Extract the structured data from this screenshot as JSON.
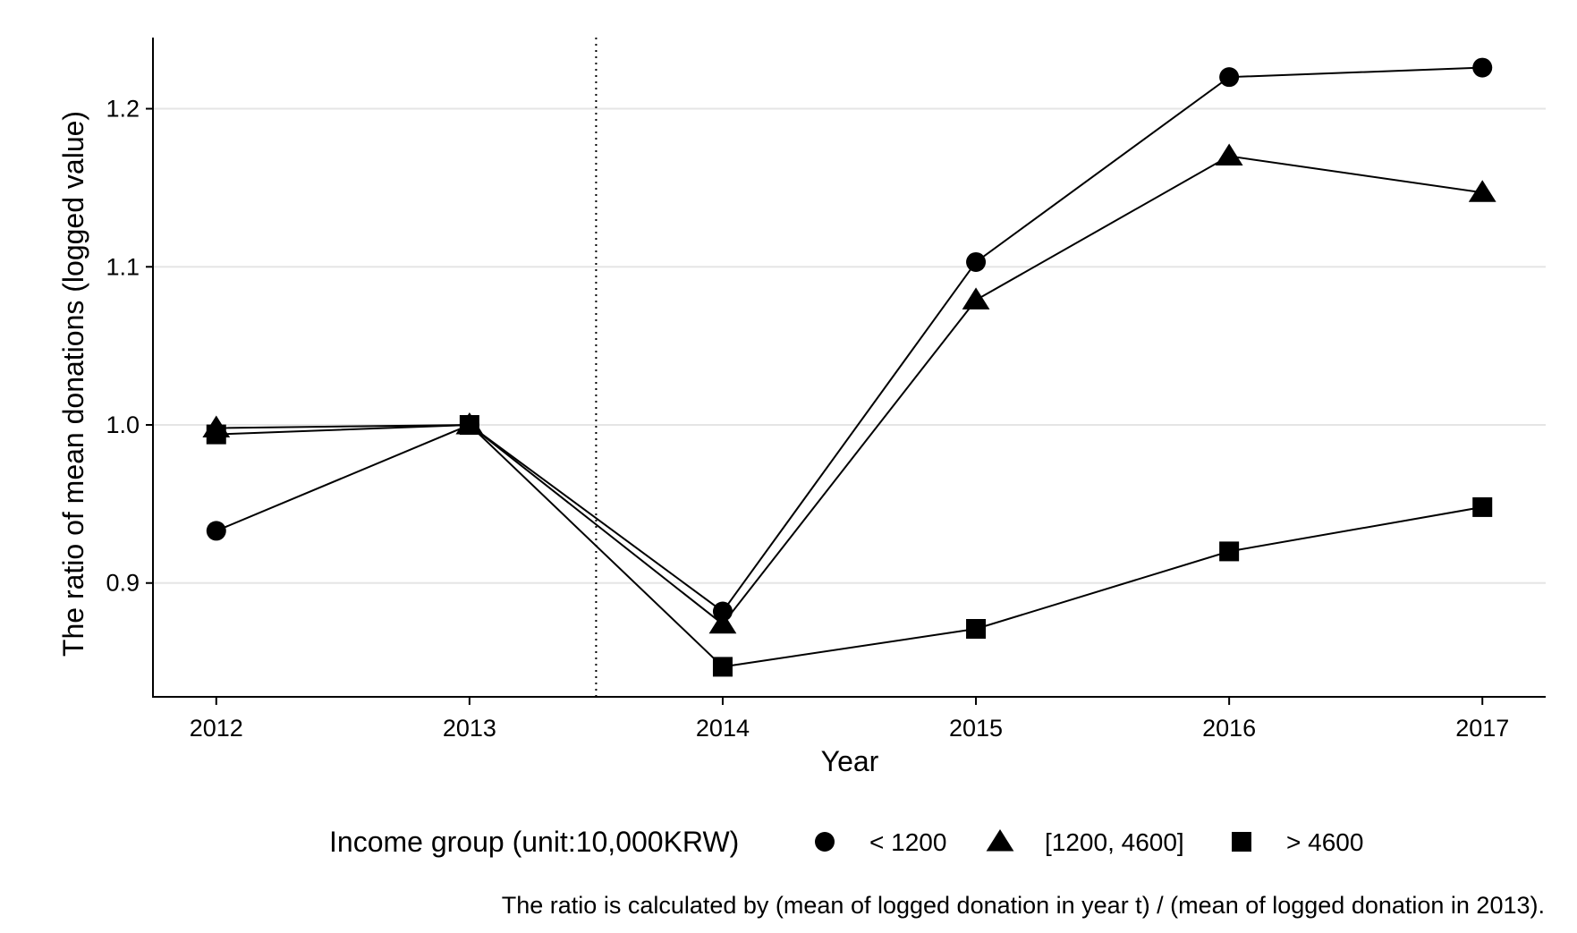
{
  "chart_data": {
    "type": "line",
    "xlabel": "Year",
    "ylabel": "The ratio of mean donations (logged value)",
    "x": [
      2012,
      2013,
      2014,
      2015,
      2016,
      2017
    ],
    "xlim": [
      2011.75,
      2017.25
    ],
    "ylim": [
      0.828,
      1.245
    ],
    "yticks": [
      0.9,
      1.0,
      1.1,
      1.2
    ],
    "ytick_labels": [
      "0.9",
      "1.0",
      "1.1",
      "1.2"
    ],
    "xtick_labels": [
      "2012",
      "2013",
      "2014",
      "2015",
      "2016",
      "2017"
    ],
    "grid": "horizontal",
    "reference_line": {
      "x": 2013.5,
      "style": "dotted"
    },
    "legend": {
      "title": "Income group (unit:10,000KRW)",
      "position": "bottom"
    },
    "series": [
      {
        "name": "< 1200",
        "marker": "circle",
        "values": [
          0.933,
          1.0,
          0.882,
          1.103,
          1.22,
          1.226
        ]
      },
      {
        "name": "[1200, 4600]",
        "marker": "triangle",
        "values": [
          0.998,
          1.0,
          0.874,
          1.079,
          1.17,
          1.147
        ]
      },
      {
        "name": "> 4600",
        "marker": "square",
        "values": [
          0.994,
          1.0,
          0.847,
          0.871,
          0.92,
          0.948
        ]
      }
    ],
    "caption": "The ratio is calculated by (mean of logged donation in year t) / (mean of logged donation in 2013).",
    "colors": {
      "line": "#000000",
      "grid": "#e5e5e5"
    }
  }
}
